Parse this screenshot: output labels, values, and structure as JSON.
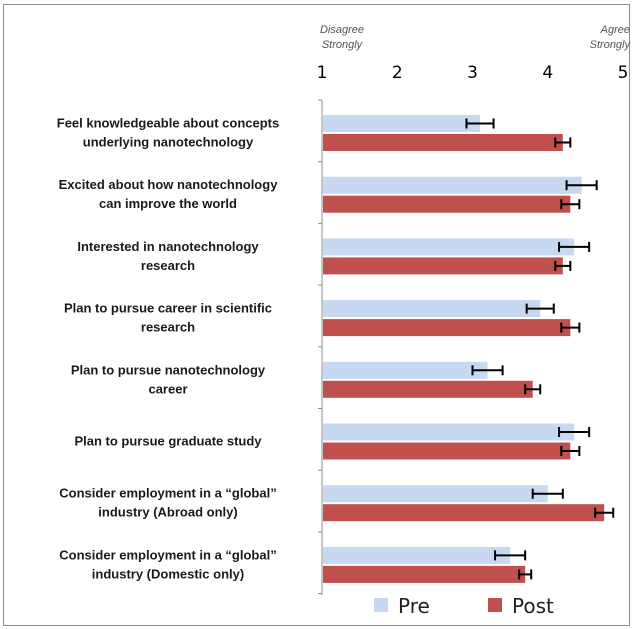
{
  "chart_data": {
    "type": "bar",
    "orientation": "horizontal",
    "xlim": [
      1,
      5
    ],
    "x_ticks": [
      "1",
      "2",
      "3",
      "4",
      "5"
    ],
    "scale_anchors": {
      "left": [
        "Disagree",
        "Strongly"
      ],
      "right": [
        "Agree",
        "Strongly"
      ]
    },
    "categories": [
      [
        "Feel knowledgeable about concepts",
        "underlying nanotechnology"
      ],
      [
        "Excited about how nanotechnology",
        "can improve the world"
      ],
      [
        "Interested in nanotechnology",
        "research"
      ],
      [
        "Plan to pursue career in scientific",
        "research"
      ],
      [
        "Plan to pursue nanotechnology",
        "career"
      ],
      [
        "Plan to pursue graduate study"
      ],
      [
        "Consider employment in a “global”",
        "industry (Abroad only)"
      ],
      [
        "Consider employment in a “global”",
        "industry (Domestic only)"
      ]
    ],
    "series": [
      {
        "name": "Pre",
        "color": "#c6d9f1",
        "values": [
          3.1,
          4.45,
          4.35,
          3.9,
          3.2,
          4.35,
          4.0,
          3.5
        ],
        "error": [
          0.18,
          0.2,
          0.2,
          0.18,
          0.2,
          0.2,
          0.2,
          0.2
        ]
      },
      {
        "name": "Post",
        "color": "#c0504d",
        "values": [
          4.2,
          4.3,
          4.2,
          4.3,
          3.8,
          4.3,
          4.75,
          3.7
        ],
        "error": [
          0.1,
          0.12,
          0.1,
          0.12,
          0.1,
          0.12,
          0.12,
          0.08
        ]
      }
    ],
    "legend": {
      "placement": "bottom-center"
    },
    "grid": false
  }
}
